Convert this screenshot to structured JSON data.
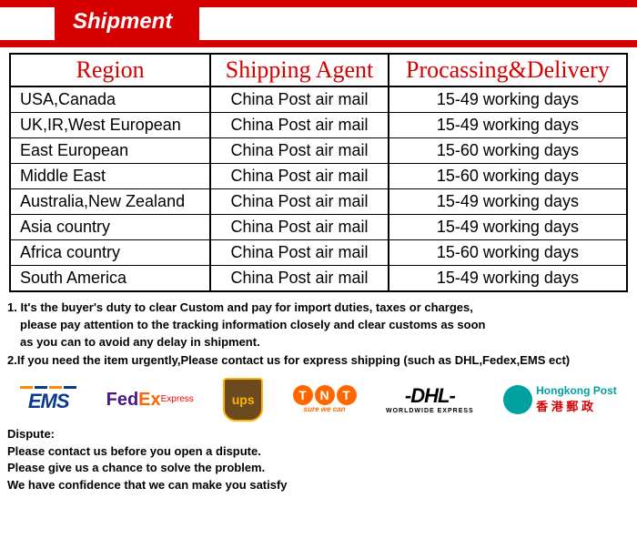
{
  "banner": {
    "title": "Shipment"
  },
  "table": {
    "columns": [
      "Region",
      "Shipping Agent",
      "Procassing&Delivery"
    ],
    "rows": [
      [
        "USA,Canada",
        "China Post air mail",
        "15-49 working days"
      ],
      [
        "UK,IR,West European",
        "China Post air mail",
        "15-49 working days"
      ],
      [
        "East European",
        "China Post air mail",
        "15-60 working days"
      ],
      [
        "Middle East",
        "China Post air mail",
        "15-60 working days"
      ],
      [
        "Australia,New Zealand",
        "China Post air mail",
        "15-49 working days"
      ],
      [
        "Asia country",
        "China Post air mail",
        "15-49 working days"
      ],
      [
        "Africa country",
        "China Post air mail",
        "15-60 working days"
      ],
      [
        "South America",
        "China Post air mail",
        "15-49 working days"
      ]
    ]
  },
  "notes": {
    "l1": "1. It's the buyer's duty to clear Custom and pay for import duties, taxes or charges,",
    "l2": "please pay attention to the tracking information closely and clear customs as soon",
    "l3": "as you can to avoid any delay in shipment.",
    "l4": "2.If you need the item urgently,Please contact us for express shipping (such as DHL,Fedex,EMS ect)"
  },
  "logos": {
    "ems": "EMS",
    "fedex_fed": "Fed",
    "fedex_ex": "Ex",
    "fedex_sub": "Express",
    "ups": "ups",
    "tnt_t1": "T",
    "tnt_n": "N",
    "tnt_t2": "T",
    "tnt_sub": "sure we can",
    "dhl": "-DHL-",
    "dhl_sub": "WORLDWIDE EXPRESS",
    "hk_en": "Hongkong Post",
    "hk_zh": "香 港 郵 政"
  },
  "dispute": {
    "h": "Dispute:",
    "l1": "Please contact us before you open a dispute.",
    "l2": "Please give us a chance to solve the problem.",
    "l3": "We have confidence that we can make you satisfy"
  },
  "colors": {
    "red": "#d70000",
    "ems_blue": "#0a3b8a",
    "ems_orange": "#ff8c00",
    "fedex_purple": "#4d148c",
    "fedex_orange": "#ff6600",
    "ups_brown": "#6b4a1f",
    "ups_gold": "#ffb500",
    "tnt": "#ff6600",
    "hk_teal": "#00a0a0"
  }
}
